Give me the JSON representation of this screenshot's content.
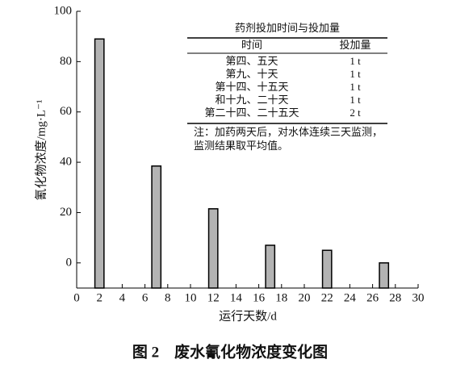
{
  "chart_data": {
    "type": "bar",
    "x_label": "运行天数/d",
    "y_label": "氰化物浓度/mg·L⁻¹",
    "caption": "图 2　废水氰化物浓度变化图",
    "x": [
      2,
      7,
      12,
      17,
      22,
      27
    ],
    "values": [
      89,
      38.5,
      21.5,
      7,
      5,
      0
    ],
    "color": "#b3b3b3",
    "bar_width": 0.8,
    "xlim": [
      0,
      30
    ],
    "xticks": [
      0,
      2,
      4,
      6,
      8,
      10,
      12,
      14,
      16,
      18,
      20,
      22,
      24,
      26,
      28,
      30
    ],
    "ylim": [
      -10,
      100
    ],
    "yticks": [
      0,
      20,
      40,
      60,
      80,
      100
    ],
    "table": {
      "title": "药剂投加时间与投加量",
      "header": [
        "时间",
        "投加量"
      ],
      "rows": [
        [
          "第四、五天",
          "1 t"
        ],
        [
          "第九、十天",
          "1 t"
        ],
        [
          "第十四、十五天",
          "1 t"
        ],
        [
          "和十九、二十天",
          "1 t"
        ],
        [
          "第二十四、二十五天",
          "2 t"
        ]
      ],
      "note": [
        "注：加药两天后，对水体连续三天监测，",
        "监测结果取平均值。"
      ]
    }
  }
}
